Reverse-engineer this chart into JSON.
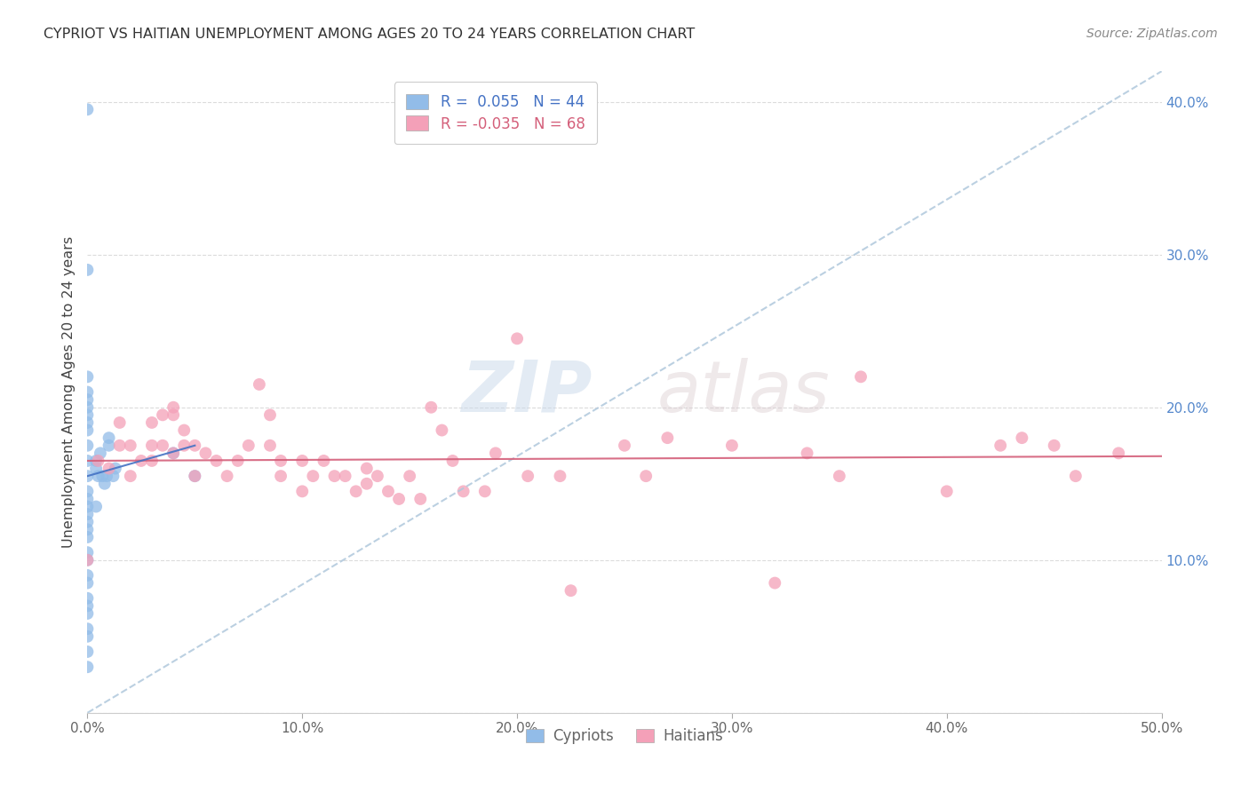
{
  "title": "CYPRIOT VS HAITIAN UNEMPLOYMENT AMONG AGES 20 TO 24 YEARS CORRELATION CHART",
  "source": "Source: ZipAtlas.com",
  "ylabel": "Unemployment Among Ages 20 to 24 years",
  "xlim": [
    0.0,
    0.5
  ],
  "ylim": [
    0.0,
    0.42
  ],
  "xticks": [
    0.0,
    0.1,
    0.2,
    0.3,
    0.4,
    0.5
  ],
  "yticks": [
    0.0,
    0.1,
    0.2,
    0.3,
    0.4
  ],
  "xticklabels": [
    "0.0%",
    "10.0%",
    "20.0%",
    "30.0%",
    "40.0%",
    "50.0%"
  ],
  "yticklabels_left": [
    "",
    "",
    "",
    "",
    ""
  ],
  "yticklabels_right": [
    "",
    "10.0%",
    "20.0%",
    "30.0%",
    "40.0%"
  ],
  "legend_R_cypriot": " 0.055",
  "legend_N_cypriot": "44",
  "legend_R_haitian": "-0.035",
  "legend_N_haitian": "68",
  "cypriot_color": "#92bce8",
  "haitian_color": "#f4a0b8",
  "cypriot_line_color": "#4472c4",
  "haitian_line_color": "#d45f7a",
  "dashed_line_color": "#b0c8dc",
  "watermark_zip": "ZIP",
  "watermark_atlas": "atlas",
  "background_color": "#ffffff",
  "grid_color": "#cccccc",
  "cypriot_x": [
    0.0,
    0.0,
    0.0,
    0.0,
    0.0,
    0.0,
    0.0,
    0.0,
    0.0,
    0.0,
    0.0,
    0.0,
    0.0,
    0.0,
    0.0,
    0.0,
    0.0,
    0.0,
    0.0,
    0.0,
    0.0,
    0.0,
    0.0,
    0.0,
    0.0,
    0.0,
    0.0,
    0.0,
    0.0,
    0.0,
    0.004,
    0.004,
    0.004,
    0.005,
    0.006,
    0.007,
    0.008,
    0.009,
    0.01,
    0.01,
    0.012,
    0.013,
    0.04,
    0.05
  ],
  "cypriot_y": [
    0.395,
    0.29,
    0.22,
    0.21,
    0.205,
    0.2,
    0.195,
    0.19,
    0.185,
    0.175,
    0.165,
    0.155,
    0.145,
    0.14,
    0.135,
    0.13,
    0.125,
    0.12,
    0.115,
    0.105,
    0.1,
    0.09,
    0.085,
    0.075,
    0.07,
    0.065,
    0.055,
    0.05,
    0.04,
    0.03,
    0.165,
    0.16,
    0.135,
    0.155,
    0.17,
    0.155,
    0.15,
    0.155,
    0.18,
    0.175,
    0.155,
    0.16,
    0.17,
    0.155
  ],
  "haitian_x": [
    0.0,
    0.005,
    0.01,
    0.015,
    0.015,
    0.02,
    0.02,
    0.025,
    0.03,
    0.03,
    0.03,
    0.035,
    0.035,
    0.04,
    0.04,
    0.04,
    0.045,
    0.045,
    0.05,
    0.05,
    0.055,
    0.06,
    0.065,
    0.07,
    0.075,
    0.08,
    0.085,
    0.085,
    0.09,
    0.09,
    0.1,
    0.1,
    0.105,
    0.11,
    0.115,
    0.12,
    0.125,
    0.13,
    0.13,
    0.135,
    0.14,
    0.145,
    0.15,
    0.155,
    0.16,
    0.165,
    0.17,
    0.175,
    0.185,
    0.19,
    0.2,
    0.205,
    0.22,
    0.225,
    0.25,
    0.26,
    0.27,
    0.3,
    0.32,
    0.335,
    0.35,
    0.36,
    0.4,
    0.425,
    0.435,
    0.45,
    0.46,
    0.48
  ],
  "haitian_y": [
    0.1,
    0.165,
    0.16,
    0.19,
    0.175,
    0.175,
    0.155,
    0.165,
    0.19,
    0.175,
    0.165,
    0.195,
    0.175,
    0.2,
    0.195,
    0.17,
    0.185,
    0.175,
    0.175,
    0.155,
    0.17,
    0.165,
    0.155,
    0.165,
    0.175,
    0.215,
    0.195,
    0.175,
    0.165,
    0.155,
    0.165,
    0.145,
    0.155,
    0.165,
    0.155,
    0.155,
    0.145,
    0.16,
    0.15,
    0.155,
    0.145,
    0.14,
    0.155,
    0.14,
    0.2,
    0.185,
    0.165,
    0.145,
    0.145,
    0.17,
    0.245,
    0.155,
    0.155,
    0.08,
    0.175,
    0.155,
    0.18,
    0.175,
    0.085,
    0.17,
    0.155,
    0.22,
    0.145,
    0.175,
    0.18,
    0.175,
    0.155,
    0.17
  ],
  "diag_line_x": [
    0.0,
    0.5
  ],
  "diag_line_y": [
    0.0,
    0.42
  ]
}
